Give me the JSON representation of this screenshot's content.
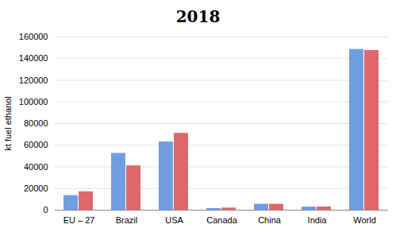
{
  "chart_data": {
    "type": "bar",
    "title": "2018",
    "ylabel": "kt fuel ethanol",
    "categories": [
      "EU – 27",
      "Brazil",
      "USA",
      "Canada",
      "China",
      "India",
      "World"
    ],
    "series": [
      {
        "color": "#6f9de2",
        "values": [
          13500,
          52500,
          63000,
          1500,
          5500,
          3000,
          148500
        ]
      },
      {
        "color": "#e0676a",
        "values": [
          17000,
          41000,
          71000,
          2000,
          5500,
          3000,
          147500
        ]
      }
    ],
    "ylim": [
      0,
      160000
    ],
    "yticks": [
      0,
      20000,
      40000,
      60000,
      80000,
      100000,
      120000,
      140000,
      160000
    ],
    "grid": true
  }
}
